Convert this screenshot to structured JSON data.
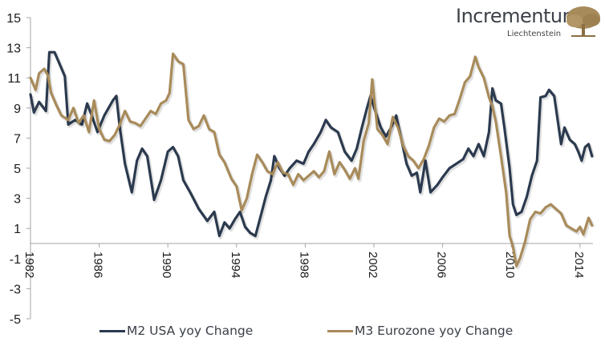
{
  "logo": {
    "name": "Incrementum",
    "subtitle": "Liechtenstein",
    "icon": "tree-icon",
    "color": "#a88b5a"
  },
  "chart_data": {
    "type": "line",
    "title": "",
    "xlabel": "",
    "ylabel": "",
    "ylim": [
      -5,
      15
    ],
    "xlim": [
      1982,
      2015.2
    ],
    "yticks": [
      15,
      13,
      11,
      9,
      7,
      5,
      3,
      1,
      -1,
      -3,
      -5
    ],
    "xticks": [
      1982,
      1986,
      1990,
      1994,
      1998,
      2002,
      2006,
      2010,
      2014
    ],
    "grid": false,
    "legend_position": "bottom",
    "series": [
      {
        "name": "M2 USA yoy Change",
        "color": "#2b3a4e",
        "x": [
          1982.0,
          1982.2,
          1982.5,
          1982.9,
          1983.1,
          1983.4,
          1983.7,
          1984.0,
          1984.2,
          1984.6,
          1985.0,
          1985.3,
          1985.6,
          1985.9,
          1986.3,
          1986.8,
          1987.0,
          1987.2,
          1987.5,
          1987.9,
          1988.2,
          1988.5,
          1988.8,
          1989.2,
          1989.6,
          1990.0,
          1990.3,
          1990.6,
          1990.9,
          1991.3,
          1991.8,
          1992.3,
          1992.7,
          1993.0,
          1993.3,
          1993.6,
          1993.9,
          1994.2,
          1994.5,
          1994.8,
          1995.1,
          1995.4,
          1995.7,
          1996.0,
          1996.2,
          1996.5,
          1996.8,
          1997.1,
          1997.5,
          1997.9,
          1998.2,
          1998.5,
          1998.9,
          1999.2,
          1999.5,
          1999.9,
          2000.3,
          2000.7,
          2001.0,
          2001.3,
          2001.6,
          2001.8,
          2002.1,
          2002.4,
          2002.7,
          2003.0,
          2003.3,
          2003.6,
          2003.9,
          2004.2,
          2004.5,
          2004.7,
          2005.0,
          2005.3,
          2005.7,
          2006.0,
          2006.4,
          2006.8,
          2007.2,
          2007.5,
          2007.8,
          2008.1,
          2008.4,
          2008.7,
          2008.9,
          2009.1,
          2009.4,
          2009.6,
          2009.9,
          2010.1,
          2010.3,
          2010.6,
          2010.9,
          2011.2,
          2011.5,
          2011.7,
          2012.0,
          2012.2,
          2012.5,
          2012.7,
          2012.9,
          2013.1,
          2013.4,
          2013.7,
          2013.9,
          2014.1,
          2014.3,
          2014.5,
          2014.7
        ],
        "values": [
          9.9,
          8.7,
          9.4,
          8.8,
          12.7,
          12.7,
          11.9,
          11.1,
          7.9,
          8.2,
          7.9,
          9.3,
          8.4,
          7.4,
          8.5,
          9.5,
          9.8,
          7.7,
          5.3,
          3.4,
          5.5,
          6.3,
          5.8,
          2.9,
          4.2,
          6.1,
          6.4,
          5.8,
          4.2,
          3.4,
          2.3,
          1.5,
          2.1,
          0.5,
          1.4,
          1.0,
          1.6,
          2.1,
          1.1,
          0.7,
          0.5,
          1.8,
          3.1,
          4.2,
          5.8,
          5.0,
          4.5,
          5.0,
          5.5,
          5.3,
          6.1,
          6.6,
          7.4,
          8.2,
          7.7,
          7.4,
          6.1,
          5.5,
          6.3,
          7.7,
          9.0,
          9.8,
          8.7,
          7.7,
          7.1,
          7.7,
          8.5,
          6.9,
          5.3,
          4.5,
          4.7,
          3.4,
          5.5,
          3.4,
          3.9,
          4.4,
          5.0,
          5.3,
          5.6,
          6.3,
          5.8,
          6.6,
          5.8,
          7.4,
          10.3,
          9.5,
          9.3,
          7.7,
          5.0,
          2.6,
          1.9,
          2.1,
          3.1,
          4.5,
          5.5,
          9.7,
          9.8,
          10.2,
          9.8,
          8.2,
          6.6,
          7.7,
          6.9,
          6.6,
          6.1,
          5.5,
          6.4,
          6.6,
          5.8
        ]
      },
      {
        "name": "M3 Eurozone yoy Change",
        "color": "#a88b5a",
        "x": [
          1982.0,
          1982.3,
          1982.5,
          1982.8,
          1983.0,
          1983.2,
          1983.5,
          1983.8,
          1984.2,
          1984.5,
          1984.8,
          1985.1,
          1985.4,
          1985.7,
          1986.0,
          1986.3,
          1986.6,
          1986.9,
          1987.2,
          1987.5,
          1987.8,
          1988.1,
          1988.4,
          1988.7,
          1989.0,
          1989.3,
          1989.6,
          1989.9,
          1990.1,
          1990.3,
          1990.6,
          1990.9,
          1991.2,
          1991.5,
          1991.8,
          1992.1,
          1992.4,
          1992.7,
          1993.0,
          1993.3,
          1993.7,
          1994.0,
          1994.3,
          1994.6,
          1994.9,
          1995.2,
          1995.5,
          1995.8,
          1996.1,
          1996.4,
          1996.7,
          1997.0,
          1997.3,
          1997.6,
          1997.9,
          1998.2,
          1998.5,
          1998.8,
          1999.1,
          1999.4,
          1999.7,
          2000.0,
          2000.3,
          2000.6,
          2000.9,
          2001.1,
          2001.4,
          2001.7,
          2001.9,
          2002.2,
          2002.5,
          2002.8,
          2003.1,
          2003.4,
          2003.7,
          2004.0,
          2004.3,
          2004.6,
          2004.9,
          2005.2,
          2005.5,
          2005.8,
          2006.1,
          2006.4,
          2006.7,
          2007.0,
          2007.3,
          2007.6,
          2007.9,
          2008.1,
          2008.4,
          2008.7,
          2008.9,
          2009.1,
          2009.4,
          2009.7,
          2009.9,
          2010.1,
          2010.3,
          2010.5,
          2010.8,
          2011.1,
          2011.4,
          2011.7,
          2012.0,
          2012.3,
          2012.6,
          2012.9,
          2013.2,
          2013.5,
          2013.8,
          2014.0,
          2014.2,
          2014.5,
          2014.7
        ],
        "values": [
          11.0,
          10.2,
          11.3,
          11.6,
          11.2,
          10.0,
          9.2,
          8.5,
          8.2,
          9.0,
          8.0,
          8.5,
          7.4,
          9.5,
          7.6,
          6.9,
          6.8,
          7.2,
          7.9,
          8.8,
          8.1,
          8.0,
          7.8,
          8.3,
          8.8,
          8.6,
          9.3,
          9.5,
          10.0,
          12.6,
          12.1,
          11.9,
          8.2,
          7.6,
          7.8,
          8.5,
          7.6,
          7.4,
          5.9,
          5.4,
          4.3,
          3.8,
          2.2,
          3.0,
          4.6,
          5.9,
          5.4,
          4.8,
          4.6,
          5.4,
          4.7,
          4.6,
          3.9,
          4.6,
          4.2,
          4.5,
          4.8,
          4.4,
          4.8,
          6.1,
          4.6,
          5.4,
          4.9,
          4.3,
          5.0,
          4.3,
          6.8,
          8.0,
          10.9,
          7.6,
          7.2,
          6.6,
          8.4,
          7.7,
          6.5,
          5.8,
          5.5,
          5.0,
          5.6,
          6.5,
          7.7,
          8.3,
          8.1,
          8.5,
          8.6,
          9.6,
          10.7,
          11.1,
          12.4,
          11.7,
          11.0,
          9.7,
          9.1,
          8.1,
          5.8,
          3.4,
          0.5,
          -0.2,
          -1.5,
          -1.0,
          0.1,
          1.6,
          2.1,
          2.0,
          2.4,
          2.6,
          2.3,
          2.0,
          1.2,
          1.0,
          0.8,
          1.1,
          0.6,
          1.7,
          1.2
        ]
      }
    ]
  }
}
